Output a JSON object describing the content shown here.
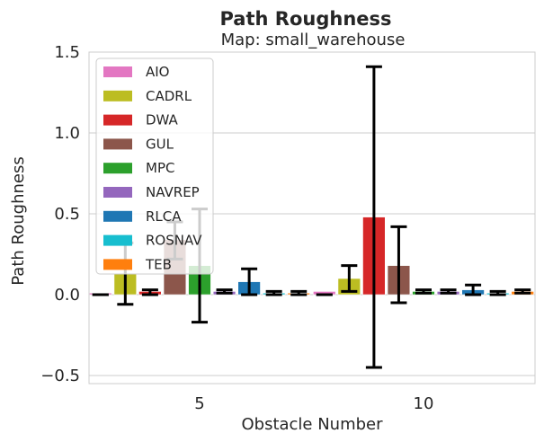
{
  "chart_data": {
    "type": "bar",
    "title": "Path Roughness",
    "subtitle": "Map: small_warehouse",
    "xlabel": "Obstacle Number",
    "ylabel": "Path Roughness",
    "ylim": [
      -0.55,
      1.5
    ],
    "yticks": [
      -0.5,
      0.0,
      0.5,
      1.0,
      1.5
    ],
    "ytick_labels": [
      "−0.5",
      "0.0",
      "0.5",
      "1.0",
      "1.5"
    ],
    "grid": "horizontal",
    "legend_position": "upper-left",
    "categories": [
      "5",
      "10"
    ],
    "series": [
      {
        "name": "AIO",
        "color": "#e377c2",
        "values": [
          0.01,
          0.02
        ],
        "err_low": [
          0.0,
          0.0
        ],
        "err_high": [
          0.0,
          0.0
        ]
      },
      {
        "name": "CADRL",
        "color": "#bcbd22",
        "values": [
          0.13,
          0.1
        ],
        "err_low": [
          -0.06,
          0.02
        ],
        "err_high": [
          0.32,
          0.18
        ]
      },
      {
        "name": "DWA",
        "color": "#d62728",
        "values": [
          0.02,
          0.48
        ],
        "err_low": [
          0.0,
          -0.45
        ],
        "err_high": [
          0.03,
          1.41
        ]
      },
      {
        "name": "GUL",
        "color": "#8c564b",
        "values": [
          0.34,
          0.18
        ],
        "err_low": [
          0.22,
          -0.05
        ],
        "err_high": [
          0.45,
          0.42
        ]
      },
      {
        "name": "MPC",
        "color": "#2ca02c",
        "values": [
          0.18,
          0.02
        ],
        "err_low": [
          -0.17,
          0.01
        ],
        "err_high": [
          0.53,
          0.03
        ]
      },
      {
        "name": "NAVREP",
        "color": "#9467bd",
        "values": [
          0.02,
          0.02
        ],
        "err_low": [
          0.01,
          0.01
        ],
        "err_high": [
          0.03,
          0.03
        ]
      },
      {
        "name": "RLCA",
        "color": "#1f77b4",
        "values": [
          0.08,
          0.03
        ],
        "err_low": [
          0.0,
          0.0
        ],
        "err_high": [
          0.16,
          0.06
        ]
      },
      {
        "name": "ROSNAV",
        "color": "#17becf",
        "values": [
          0.01,
          0.01
        ],
        "err_low": [
          0.0,
          0.0
        ],
        "err_high": [
          0.02,
          0.02
        ]
      },
      {
        "name": "TEB",
        "color": "#ff7f0e",
        "values": [
          0.01,
          0.02
        ],
        "err_low": [
          0.0,
          0.01
        ],
        "err_high": [
          0.02,
          0.03
        ]
      }
    ]
  }
}
